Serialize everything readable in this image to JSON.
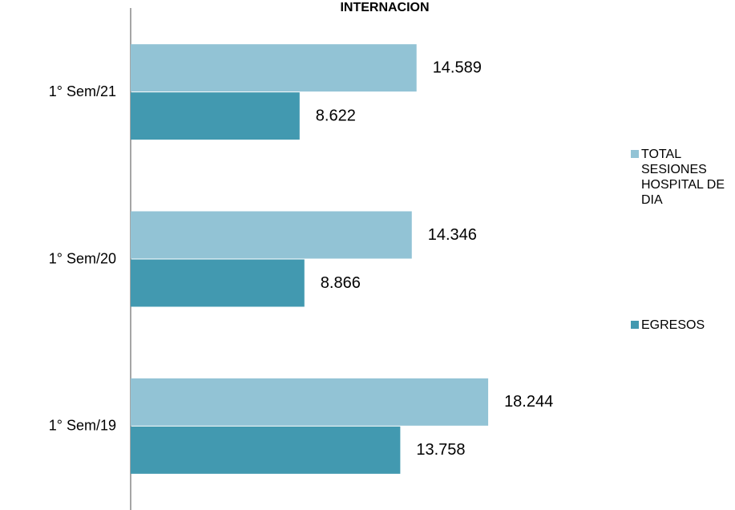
{
  "chart_data": {
    "type": "bar",
    "orientation": "horizontal",
    "title": "INTERNACION",
    "categories": [
      "1° Sem/21",
      "1° Sem/20",
      "1° Sem/19"
    ],
    "series": [
      {
        "name": "TOTAL SESIONES HOSPITAL DE DIA",
        "color": "#92c3d5",
        "values": [
          14589,
          14346,
          18244
        ],
        "value_labels": [
          "14.589",
          "14.346",
          "18.244"
        ]
      },
      {
        "name": "EGRESOS",
        "color": "#4299b0",
        "values": [
          8622,
          8866,
          13758
        ],
        "value_labels": [
          "8.622",
          "8.866",
          "13.758"
        ]
      }
    ],
    "xlim": [
      0,
      20000
    ],
    "legend": "right"
  }
}
